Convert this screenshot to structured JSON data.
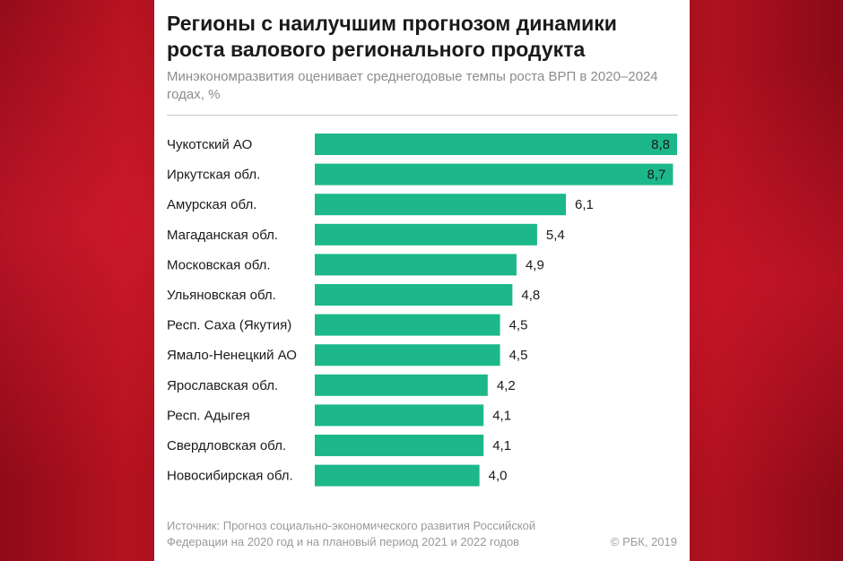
{
  "chart_data": {
    "type": "bar",
    "orientation": "horizontal",
    "title": "Регионы с наилучшим прогнозом динамики роста валового регионального продукта",
    "subtitle": "Минэкономразвития оценивает среднегодовые темпы роста ВРП в 2020–2024 годах, %",
    "categories": [
      "Чукотский АО",
      "Иркутская обл.",
      "Амурская обл.",
      "Магаданская обл.",
      "Московская обл.",
      "Ульяновская обл.",
      "Респ. Саха (Якутия)",
      "Ямало-Ненецкий АО",
      "Ярославская обл.",
      "Респ. Адыгея",
      "Свердловская обл.",
      "Новосибирская обл."
    ],
    "values": [
      8.8,
      8.7,
      6.1,
      5.4,
      4.9,
      4.8,
      4.5,
      4.5,
      4.2,
      4.1,
      4.1,
      4.0
    ],
    "value_labels": [
      "8,8",
      "8,7",
      "6,1",
      "5,4",
      "4,9",
      "4,8",
      "4,5",
      "4,5",
      "4,2",
      "4,1",
      "4,1",
      "4,0"
    ],
    "xlim": [
      0,
      8.8
    ],
    "grid": false,
    "bar_color": "#1db88a"
  },
  "footer": {
    "source": "Источник: Прогноз социально-экономического развития Российской Федерации на 2020 год и на плановый период 2021 и 2022 годов",
    "copyright": "© РБК, 2019"
  },
  "colors": {
    "background": "#8b0a17",
    "card": "#ffffff",
    "bar": "#1db88a"
  }
}
